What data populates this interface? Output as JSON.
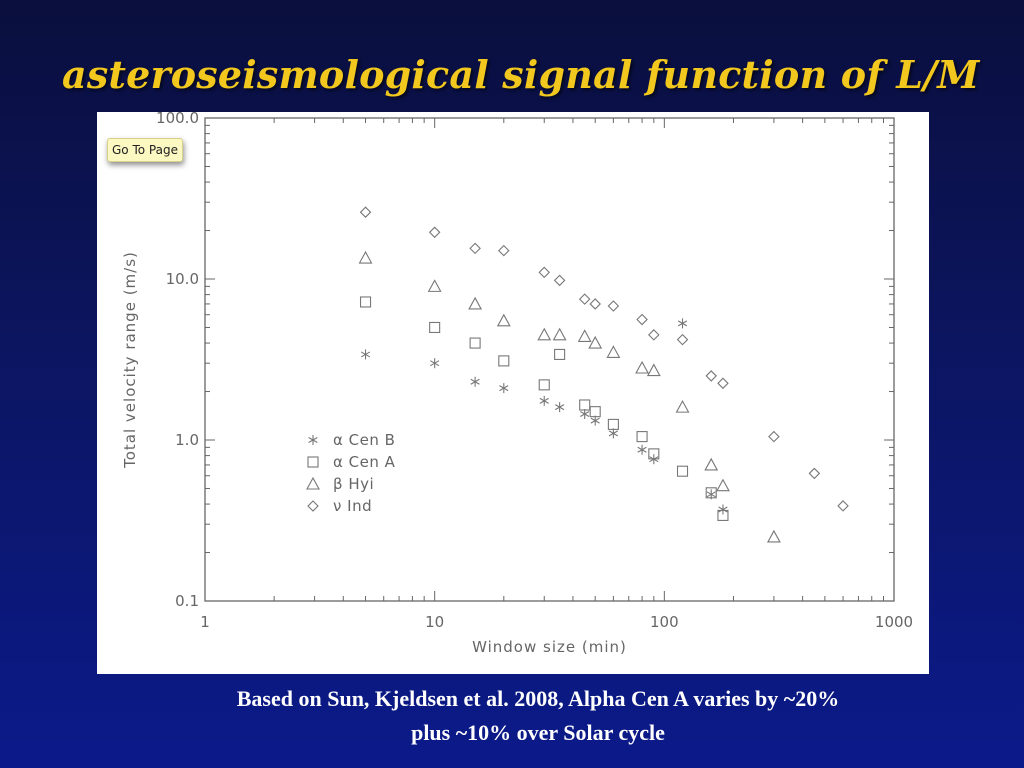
{
  "slide": {
    "title": "asteroseismological signal function of L/M",
    "caption_line1": "Based on Sun, Kjeldsen et al. 2008, Alpha Cen A varies by ~20%",
    "caption_line2": "plus ~10% over Solar cycle"
  },
  "overlay": {
    "goto_label": "Go To Page"
  },
  "colors": {
    "title": "#f2c81e",
    "caption": "#ffffff",
    "marker": "#777777",
    "axis": "#666666"
  },
  "chart_data": {
    "type": "scatter",
    "xlabel": "Window size (min)",
    "ylabel": "Total velocity range (m/s)",
    "xscale": "log",
    "yscale": "log",
    "xlim": [
      1,
      1000
    ],
    "ylim": [
      0.1,
      100
    ],
    "xticks": [
      {
        "v": 1,
        "label": "1"
      },
      {
        "v": 10,
        "label": "10"
      },
      {
        "v": 100,
        "label": "100"
      },
      {
        "v": 1000,
        "label": "1000"
      }
    ],
    "yticks": [
      {
        "v": 0.1,
        "label": "0.1"
      },
      {
        "v": 1,
        "label": "1.0"
      },
      {
        "v": 10,
        "label": "10.0"
      },
      {
        "v": 100,
        "label": "100.0"
      }
    ],
    "legend_position": "left-middle",
    "series": [
      {
        "name": "α Cen B",
        "marker": "asterisk",
        "x": [
          5,
          10,
          15,
          20,
          30,
          35,
          45,
          50,
          60,
          80,
          90,
          120,
          160,
          180
        ],
        "y": [
          3.4,
          3.0,
          2.3,
          2.1,
          1.75,
          1.6,
          1.45,
          1.32,
          1.1,
          0.87,
          0.76,
          5.3,
          0.46,
          0.37
        ]
      },
      {
        "name": "α Cen A",
        "marker": "square",
        "x": [
          5,
          10,
          15,
          20,
          30,
          35,
          45,
          50,
          60,
          80,
          90,
          120,
          160,
          180
        ],
        "y": [
          7.2,
          5.0,
          4.0,
          3.1,
          2.2,
          3.4,
          1.65,
          1.5,
          1.25,
          1.05,
          0.82,
          0.64,
          0.47,
          0.34
        ]
      },
      {
        "name": "β Hyi",
        "marker": "triangle",
        "x": [
          5,
          10,
          15,
          20,
          30,
          35,
          45,
          50,
          60,
          80,
          90,
          120,
          160,
          180,
          300
        ],
        "y": [
          13.5,
          9.0,
          7.0,
          5.5,
          4.5,
          4.5,
          4.4,
          4.0,
          3.5,
          2.8,
          2.7,
          1.6,
          0.7,
          0.52,
          0.25
        ]
      },
      {
        "name": "ν Ind",
        "marker": "diamond",
        "x": [
          5,
          10,
          15,
          20,
          30,
          35,
          45,
          50,
          60,
          80,
          90,
          120,
          160,
          180,
          300,
          450,
          600
        ],
        "y": [
          26,
          19.5,
          15.5,
          15,
          11,
          9.8,
          7.5,
          7.0,
          6.8,
          5.6,
          4.5,
          4.2,
          2.5,
          2.25,
          1.05,
          0.62,
          0.39
        ]
      }
    ]
  }
}
